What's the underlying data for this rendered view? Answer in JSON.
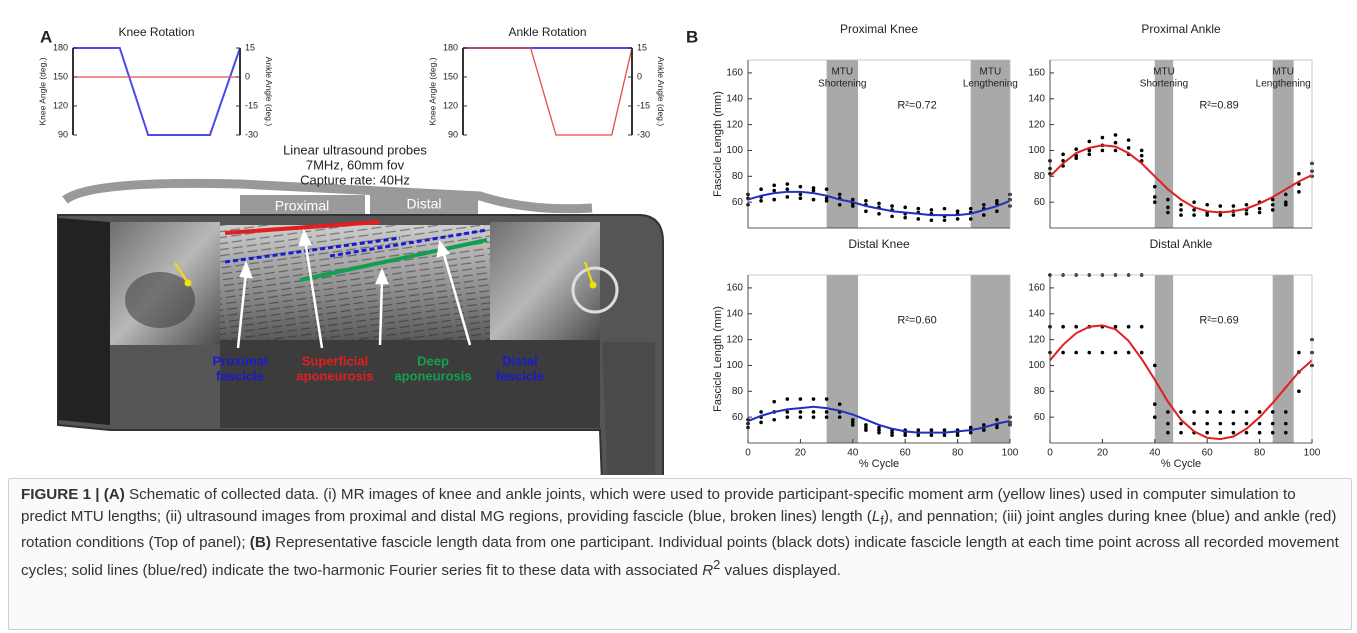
{
  "panel_labels": [
    "A",
    "B"
  ],
  "schematic": {
    "probe_text": [
      "Linear ultrasound probes",
      "7MHz, 60mm fov",
      "Capture rate: 40Hz"
    ],
    "probes": [
      "Proximal",
      "Distal"
    ],
    "labels": [
      {
        "lines": [
          "Proximal",
          "fascicle"
        ],
        "color": "#1a1ad0"
      },
      {
        "lines": [
          "Superficial",
          "aponeurosis"
        ],
        "color": "#e02020"
      },
      {
        "lines": [
          "Deep",
          "aponeurosis"
        ],
        "color": "#12a050"
      },
      {
        "lines": [
          "Distal",
          "fascicle"
        ],
        "color": "#1a1ad0"
      }
    ]
  },
  "chart_data": [
    {
      "type": "line",
      "title": "Knee Rotation",
      "y_label": "Knee Angle (deg.)",
      "y2_label": "Ankle Angle (deg.)",
      "x": [
        0,
        28,
        45,
        82,
        100
      ],
      "xlim": [
        0,
        100
      ],
      "ylim": [
        90,
        180
      ],
      "yticks": [
        90,
        120,
        150,
        180
      ],
      "y2lim": [
        -30,
        15
      ],
      "y2ticks": [
        -30,
        -15,
        0,
        15
      ],
      "series": [
        {
          "color": "#4a4ae8",
          "values": [
            180,
            180,
            90,
            90,
            180
          ]
        },
        {
          "color": "#e84a4a",
          "axis": "y2",
          "values": [
            0,
            0,
            0,
            0,
            0
          ]
        }
      ]
    },
    {
      "type": "line",
      "title": "Ankle Rotation",
      "y_label": "Knee Angle (deg.)",
      "y2_label": "Ankle Angle (deg.)",
      "x": [
        0,
        40,
        55,
        88,
        100
      ],
      "xlim": [
        0,
        100
      ],
      "ylim": [
        90,
        180
      ],
      "yticks": [
        90,
        120,
        150,
        180
      ],
      "y2lim": [
        -30,
        15
      ],
      "y2ticks": [
        -30,
        -15,
        0,
        15
      ],
      "series": [
        {
          "color": "#4a4ae8",
          "values": [
            180,
            180,
            180,
            180,
            180
          ]
        },
        {
          "color": "#e84a4a",
          "axis": "y2",
          "values": [
            15,
            15,
            -30,
            -30,
            15
          ]
        }
      ]
    },
    {
      "type": "scatter",
      "title": "Proximal Knee",
      "y_label": "Fascicle Length (mm)",
      "annotation": "R²=0.72",
      "xlim": [
        0,
        100
      ],
      "ylim": [
        40,
        170
      ],
      "yticks": [
        60,
        80,
        100,
        120,
        140,
        160
      ],
      "shaded": [
        [
          30,
          42
        ],
        [
          85,
          100
        ]
      ],
      "shaded_labels": [
        [
          "MTU",
          "Shortening"
        ],
        [
          "MTU",
          "Lengthening"
        ]
      ],
      "x": [
        0,
        5,
        10,
        15,
        20,
        25,
        30,
        35,
        40,
        45,
        50,
        55,
        60,
        65,
        70,
        75,
        80,
        85,
        90,
        95,
        100
      ],
      "points_y": [
        [
          66,
          70,
          73,
          74,
          72,
          71,
          70,
          66,
          62,
          61,
          59,
          57,
          56,
          55,
          54,
          55,
          53,
          55,
          58,
          61,
          66
        ],
        [
          58,
          61,
          62,
          64,
          63,
          62,
          61,
          58,
          57,
          53,
          51,
          49,
          48,
          47,
          46,
          46,
          47,
          47,
          50,
          53,
          57
        ],
        [
          63,
          64,
          69,
          70,
          66,
          69,
          63,
          63,
          59,
          58,
          56,
          54,
          51,
          52,
          51,
          49,
          51,
          52,
          55,
          59,
          62
        ]
      ],
      "fit": {
        "color": "#2030c0",
        "values": [
          62,
          65,
          67,
          68,
          68,
          67,
          65,
          62,
          60,
          57,
          55,
          53,
          52,
          51,
          50,
          50,
          50,
          51,
          54,
          57,
          61
        ]
      }
    },
    {
      "type": "scatter",
      "title": "Proximal Ankle",
      "annotation": "R²=0.89",
      "xlim": [
        0,
        100
      ],
      "ylim": [
        40,
        170
      ],
      "yticks": [
        60,
        80,
        100,
        120,
        140,
        160
      ],
      "shaded": [
        [
          40,
          47
        ],
        [
          85,
          93
        ]
      ],
      "shaded_labels": [
        [
          "MTU",
          "Shortening"
        ],
        [
          "MTU",
          "Lengthening"
        ]
      ],
      "x": [
        0,
        5,
        10,
        15,
        20,
        25,
        30,
        35,
        40,
        45,
        50,
        55,
        60,
        65,
        70,
        75,
        80,
        85,
        90,
        95,
        100
      ],
      "points_y": [
        [
          92,
          97,
          101,
          107,
          110,
          112,
          108,
          100,
          72,
          62,
          58,
          60,
          58,
          57,
          57,
          58,
          60,
          62,
          66,
          82,
          90
        ],
        [
          86,
          92,
          96,
          100,
          104,
          106,
          102,
          96,
          64,
          56,
          54,
          54,
          52,
          52,
          53,
          54,
          55,
          58,
          60,
          74,
          84
        ],
        [
          82,
          88,
          94,
          97,
          100,
          100,
          97,
          92,
          60,
          52,
          50,
          50,
          50,
          50,
          50,
          51,
          52,
          54,
          58,
          68,
          80
        ]
      ],
      "fit": {
        "color": "#e02020",
        "values": [
          80,
          90,
          98,
          102,
          104,
          103,
          98,
          90,
          80,
          70,
          62,
          56,
          53,
          52,
          53,
          55,
          59,
          64,
          70,
          76,
          81
        ]
      }
    },
    {
      "type": "scatter",
      "title": "Distal Knee",
      "y_label": "Fascicle Length (mm)",
      "x_label": "% Cycle",
      "annotation": "R²=0.60",
      "xlim": [
        0,
        100
      ],
      "xticks": [
        0,
        20,
        40,
        60,
        80,
        100
      ],
      "ylim": [
        40,
        170
      ],
      "yticks": [
        60,
        80,
        100,
        120,
        140,
        160
      ],
      "shaded": [
        [
          30,
          42
        ],
        [
          85,
          100
        ]
      ],
      "x": [
        0,
        5,
        10,
        15,
        20,
        25,
        30,
        35,
        40,
        45,
        50,
        55,
        60,
        65,
        70,
        75,
        80,
        85,
        90,
        95,
        100
      ],
      "points_y": [
        [
          58,
          64,
          72,
          74,
          74,
          74,
          74,
          70,
          58,
          54,
          52,
          50,
          50,
          50,
          50,
          50,
          50,
          52,
          54,
          58,
          60
        ],
        [
          55,
          60,
          64,
          64,
          64,
          64,
          64,
          64,
          56,
          52,
          50,
          48,
          48,
          48,
          48,
          48,
          48,
          50,
          52,
          54,
          56
        ],
        [
          52,
          56,
          58,
          60,
          60,
          60,
          60,
          60,
          54,
          50,
          48,
          46,
          46,
          46,
          46,
          46,
          46,
          48,
          50,
          52,
          54
        ]
      ],
      "fit": {
        "color": "#2030c0",
        "values": [
          57,
          61,
          64,
          66,
          67,
          68,
          67,
          65,
          62,
          58,
          54,
          51,
          49,
          48,
          48,
          48,
          49,
          50,
          52,
          55,
          57
        ]
      }
    },
    {
      "type": "scatter",
      "title": "Distal Ankle",
      "x_label": "% Cycle",
      "annotation": "R²=0.69",
      "xlim": [
        0,
        100
      ],
      "xticks": [
        0,
        20,
        40,
        60,
        80,
        100
      ],
      "ylim": [
        40,
        170
      ],
      "yticks": [
        60,
        80,
        100,
        120,
        140,
        160
      ],
      "shaded": [
        [
          40,
          47
        ],
        [
          85,
          93
        ]
      ],
      "x": [
        0,
        5,
        10,
        15,
        20,
        25,
        30,
        35,
        40,
        45,
        50,
        55,
        60,
        65,
        70,
        75,
        80,
        85,
        90,
        95,
        100
      ],
      "points_y": [
        [
          170,
          170,
          170,
          170,
          170,
          170,
          170,
          170,
          100,
          64,
          64,
          64,
          64,
          64,
          64,
          64,
          64,
          64,
          64,
          110,
          120
        ],
        [
          130,
          130,
          130,
          130,
          130,
          130,
          130,
          130,
          70,
          55,
          55,
          55,
          55,
          55,
          55,
          55,
          55,
          55,
          55,
          95,
          110
        ],
        [
          110,
          110,
          110,
          110,
          110,
          110,
          110,
          110,
          60,
          48,
          48,
          48,
          48,
          48,
          48,
          48,
          48,
          48,
          48,
          80,
          100
        ]
      ],
      "fit": {
        "color": "#e02020",
        "values": [
          104,
          116,
          125,
          130,
          131,
          128,
          119,
          105,
          89,
          72,
          58,
          49,
          44,
          43,
          45,
          51,
          60,
          71,
          83,
          95,
          104
        ]
      }
    }
  ],
  "caption": [
    "FIGURE 1 | ",
    "(A)",
    " Schematic of collected data. (i) MR images of knee and ankle joints, which were used to provide participant-specific moment arm (yellow lines) used in computer simulation to predict MTU lengths; (ii) ultrasound images from proximal and distal MG regions, providing fascicle (blue, broken lines) length (",
    "L",
    "f",
    "), and pennation; (iii) joint angles during knee (blue) and ankle (red) rotation conditions (Top of panel); ",
    "(B)",
    " Representative fascicle length data from one participant. Individual points (black dots) indicate fascicle length at each time point across all recorded movement cycles; solid lines (blue/red) indicate the two-harmonic Fourier series fit to these data with associated ",
    "R",
    "2",
    " values displayed."
  ]
}
